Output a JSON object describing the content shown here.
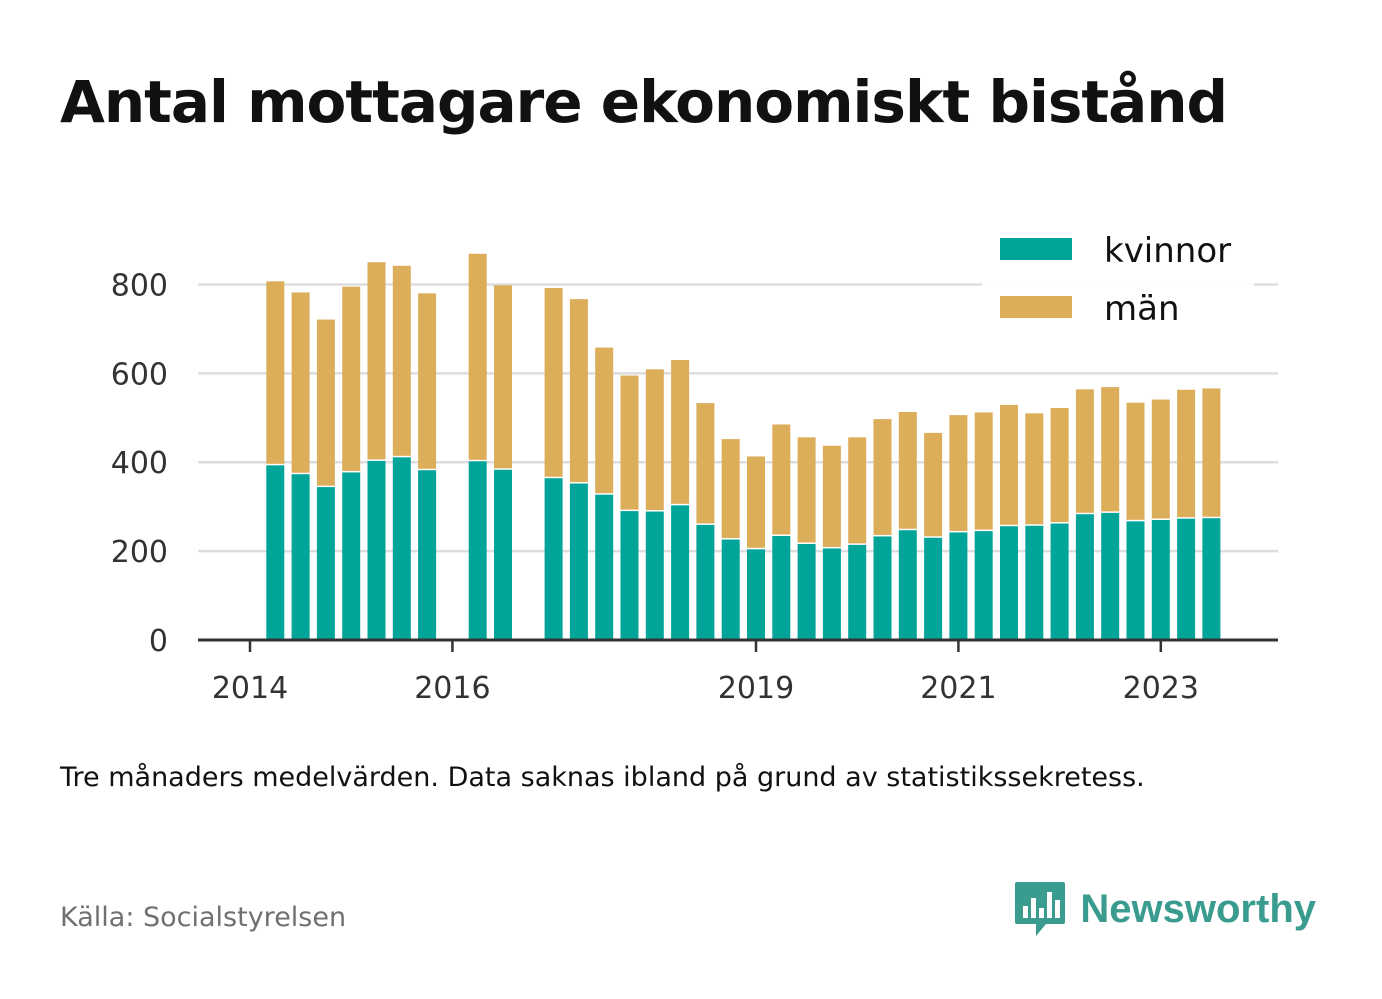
{
  "title": "Antal mottagare ekonomiskt bistånd",
  "note": "Tre månaders medelvärden. Data saknas ibland på grund av statistikssekretess.",
  "source": "Källa: Socialstyrelsen",
  "brand": {
    "name": "Newsworthy",
    "color": "#3a9b8f"
  },
  "legend": [
    {
      "label": "kvinnor",
      "color": "#00a498"
    },
    {
      "label": "män",
      "color": "#dcae5a"
    }
  ],
  "chart_data": {
    "type": "bar",
    "stacked": true,
    "grid": true,
    "legend_position": "top-right",
    "ylim": [
      0,
      900
    ],
    "yticks": [
      0,
      200,
      400,
      600,
      800
    ],
    "xticks": [
      {
        "label": "2014",
        "value": 2014.0
      },
      {
        "label": "2016",
        "value": 2016.0
      },
      {
        "label": "2019",
        "value": 2019.0
      },
      {
        "label": "2021",
        "value": 2021.0
      },
      {
        "label": "2023",
        "value": 2023.0
      }
    ],
    "x": [
      2014.0,
      2014.25,
      2014.5,
      2014.75,
      2015.0,
      2015.25,
      2015.5,
      2015.75,
      2016.0,
      2016.25,
      2016.5,
      2016.75,
      2017.0,
      2017.25,
      2017.5,
      2017.75,
      2018.0,
      2018.25,
      2018.5,
      2018.75,
      2019.0,
      2019.25,
      2019.5,
      2019.75,
      2020.0,
      2020.25,
      2020.5,
      2020.75,
      2021.0,
      2021.25,
      2021.5,
      2021.75,
      2022.0,
      2022.25,
      2022.5,
      2022.75,
      2023.0,
      2023.25,
      2023.5,
      2023.75
    ],
    "series": [
      {
        "name": "kvinnor",
        "color": "#00a498",
        "values": [
          null,
          393,
          373,
          344,
          377,
          403,
          411,
          382,
          null,
          402,
          383,
          null,
          364,
          352,
          327,
          290,
          289,
          303,
          259,
          226,
          204,
          234,
          216,
          206,
          214,
          233,
          247,
          230,
          242,
          245,
          256,
          257,
          262,
          283,
          286,
          267,
          270,
          273,
          274,
          null
        ]
      },
      {
        "name": "män",
        "color": "#dcae5a",
        "values": [
          null,
          414,
          409,
          377,
          418,
          447,
          431,
          398,
          null,
          467,
          415,
          null,
          428,
          415,
          331,
          305,
          320,
          327,
          274,
          226,
          209,
          251,
          240,
          231,
          242,
          264,
          266,
          236,
          264,
          267,
          273,
          253,
          260,
          281,
          283,
          267,
          271,
          290,
          292,
          null
        ]
      }
    ]
  }
}
